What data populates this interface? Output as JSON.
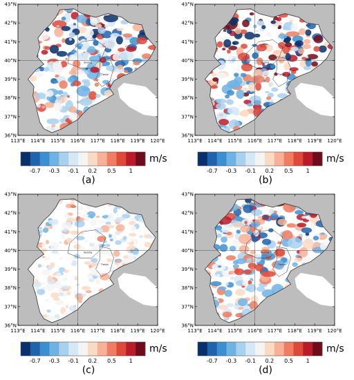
{
  "lat_ticks": [
    "36°N",
    "37°N",
    "38°N",
    "39°N",
    "40°N",
    "41°N",
    "42°N",
    "43°N"
  ],
  "lon_ticks": [
    "113°E",
    "114°E",
    "115°E",
    "116°E",
    "117°E",
    "118°E",
    "119°E",
    "120°E"
  ],
  "colorbar": {
    "unit": "m/s",
    "tick_labels": [
      "-0.7",
      "-0.3",
      "-0.1",
      "0.2",
      "0.5",
      "1"
    ],
    "colors": [
      "#08306b",
      "#1f63ad",
      "#3c8fd0",
      "#6fb3e4",
      "#a8d0ef",
      "#d6e8f6",
      "#f4f4f4",
      "#fbdac4",
      "#f6b196",
      "#ee7d62",
      "#de4839",
      "#b91b2b",
      "#6e0c1c"
    ]
  },
  "map_colors": {
    "ocean": "#bdbdbd",
    "land": "#ffffff",
    "border": "#333333",
    "grid": "#555555"
  },
  "cities": [
    "Beijing",
    "Tianjin"
  ],
  "panels": [
    {
      "letter": "(a)"
    },
    {
      "letter": "(b)"
    },
    {
      "letter": "(c)"
    },
    {
      "letter": "(d)"
    }
  ]
}
